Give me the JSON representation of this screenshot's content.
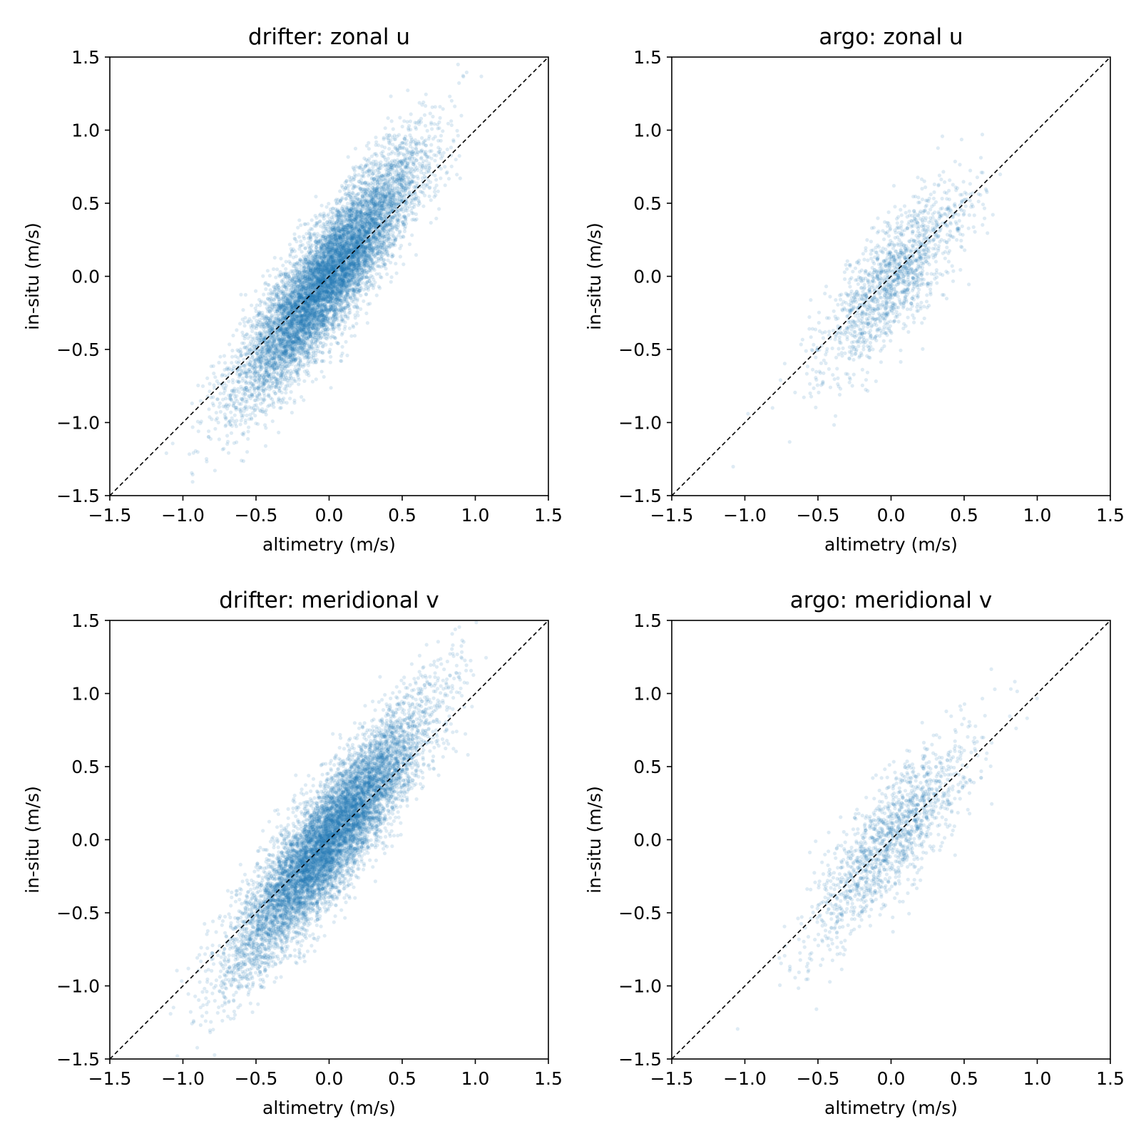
{
  "chart_data": [
    {
      "type": "scatter",
      "title": "drifter: zonal u",
      "xlabel": "altimetry (m/s)",
      "ylabel": "in-situ (m/s)",
      "xlim": [
        -1.5,
        1.5
      ],
      "ylim": [
        -1.5,
        1.5
      ],
      "xticks": [
        "−1.5",
        "−1.0",
        "−0.5",
        "0.0",
        "0.5",
        "1.0",
        "1.5"
      ],
      "yticks": [
        "−1.5",
        "−1.0",
        "−0.5",
        "0.0",
        "0.5",
        "1.0",
        "1.5"
      ],
      "grid": false,
      "reference_line": {
        "style": "dashed",
        "color": "#000000",
        "x": [
          -1.5,
          1.5
        ],
        "y": [
          -1.5,
          1.5
        ]
      },
      "point_color": "#1f77b4",
      "point_alpha": 0.15,
      "distribution": {
        "n": 9000,
        "x_mean": 0.0,
        "x_std": 0.3,
        "slope": 1.18,
        "intercept": 0.0,
        "noise_std": 0.2
      }
    },
    {
      "type": "scatter",
      "title": "argo: zonal u",
      "xlabel": "altimetry (m/s)",
      "ylabel": "in-situ (m/s)",
      "xlim": [
        -1.5,
        1.5
      ],
      "ylim": [
        -1.5,
        1.5
      ],
      "xticks": [
        "−1.5",
        "−1.0",
        "−0.5",
        "0.0",
        "0.5",
        "1.0",
        "1.5"
      ],
      "yticks": [
        "−1.5",
        "−1.0",
        "−0.5",
        "0.0",
        "0.5",
        "1.0",
        "1.5"
      ],
      "grid": false,
      "reference_line": {
        "style": "dashed",
        "color": "#000000",
        "x": [
          -1.5,
          1.5
        ],
        "y": [
          -1.5,
          1.5
        ]
      },
      "point_color": "#1f77b4",
      "point_alpha": 0.15,
      "distribution": {
        "n": 1500,
        "x_mean": 0.02,
        "x_std": 0.25,
        "slope": 1.0,
        "intercept": -0.04,
        "noise_std": 0.2
      }
    },
    {
      "type": "scatter",
      "title": "drifter: meridional v",
      "xlabel": "altimetry (m/s)",
      "ylabel": "in-situ (m/s)",
      "xlim": [
        -1.5,
        1.5
      ],
      "ylim": [
        -1.5,
        1.5
      ],
      "xticks": [
        "−1.5",
        "−1.0",
        "−0.5",
        "0.0",
        "0.5",
        "1.0",
        "1.5"
      ],
      "yticks": [
        "−1.5",
        "−1.0",
        "−0.5",
        "0.0",
        "0.5",
        "1.0",
        "1.5"
      ],
      "grid": false,
      "reference_line": {
        "style": "dashed",
        "color": "#000000",
        "x": [
          -1.5,
          1.5
        ],
        "y": [
          -1.5,
          1.5
        ]
      },
      "point_color": "#1f77b4",
      "point_alpha": 0.15,
      "distribution": {
        "n": 9000,
        "x_mean": 0.0,
        "x_std": 0.32,
        "slope": 1.2,
        "intercept": 0.0,
        "noise_std": 0.2
      }
    },
    {
      "type": "scatter",
      "title": "argo: meridional v",
      "xlabel": "altimetry (m/s)",
      "ylabel": "in-situ (m/s)",
      "xlim": [
        -1.5,
        1.5
      ],
      "ylim": [
        -1.5,
        1.5
      ],
      "xticks": [
        "−1.5",
        "−1.0",
        "−0.5",
        "0.0",
        "0.5",
        "1.0",
        "1.5"
      ],
      "yticks": [
        "−1.5",
        "−1.0",
        "−0.5",
        "0.0",
        "0.5",
        "1.0",
        "1.5"
      ],
      "grid": false,
      "reference_line": {
        "style": "dashed",
        "color": "#000000",
        "x": [
          -1.5,
          1.5
        ],
        "y": [
          -1.5,
          1.5
        ]
      },
      "point_color": "#1f77b4",
      "point_alpha": 0.15,
      "distribution": {
        "n": 1500,
        "x_mean": 0.0,
        "x_std": 0.28,
        "slope": 1.05,
        "intercept": 0.0,
        "noise_std": 0.2
      }
    }
  ]
}
